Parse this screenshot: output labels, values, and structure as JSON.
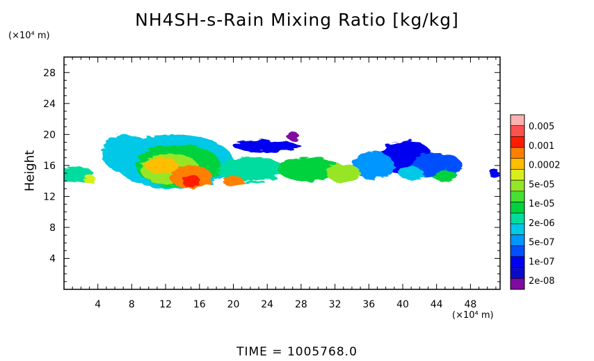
{
  "title": "NH4SH-s-Rain Mixing Ratio [kg/kg]",
  "y_unit": "(×10⁴ m)",
  "x_unit": "(×10⁴ m)",
  "ylabel": "Height",
  "time_label": "TIME  =  1005768.0",
  "chart_data": {
    "type": "heatmap",
    "title": "NH4SH-s-Rain Mixing Ratio [kg/kg]",
    "ylabel": "Height",
    "xlabel": "",
    "x_unit": "(×10⁴ m)",
    "y_unit": "(×10⁴ m)",
    "xlim": [
      0,
      51.5
    ],
    "ylim": [
      0,
      30
    ],
    "xticks": [
      4,
      8,
      12,
      16,
      20,
      24,
      28,
      32,
      36,
      40,
      44,
      48
    ],
    "yticks": [
      4,
      8,
      12,
      16,
      20,
      24,
      28
    ],
    "colorbar": {
      "labels": [
        "0.005",
        "0.001",
        "0.0002",
        "5e-05",
        "1e-05",
        "2e-06",
        "5e-07",
        "1e-07",
        "2e-08"
      ],
      "colors": [
        "#ffb0b0",
        "#ff5050",
        "#ff1e00",
        "#ff8000",
        "#ffbe00",
        "#d8ee1e",
        "#96e628",
        "#46e032",
        "#00d23c",
        "#00dca0",
        "#00c8e6",
        "#0096ff",
        "#0050ff",
        "#0000f0",
        "#0a0ac8",
        "#800aa0"
      ]
    },
    "blobs": [
      {
        "x": 1.5,
        "y": 14.8,
        "w": 4.0,
        "h": 2.2,
        "level": 9
      },
      {
        "x": 3.0,
        "y": 14.2,
        "w": 1.5,
        "h": 1.0,
        "level": 5
      },
      {
        "x": 7.5,
        "y": 17.5,
        "w": 6.0,
        "h": 5.0,
        "level": 10
      },
      {
        "x": 13.0,
        "y": 16.5,
        "w": 14.0,
        "h": 7.0,
        "level": 10
      },
      {
        "x": 13.5,
        "y": 16.0,
        "w": 10.0,
        "h": 5.5,
        "level": 8
      },
      {
        "x": 12.5,
        "y": 15.5,
        "w": 7.0,
        "h": 4.0,
        "level": 6
      },
      {
        "x": 11.5,
        "y": 16.0,
        "w": 4.0,
        "h": 2.0,
        "level": 4
      },
      {
        "x": 15.0,
        "y": 14.5,
        "w": 5.0,
        "h": 3.0,
        "level": 3
      },
      {
        "x": 15.0,
        "y": 14.0,
        "w": 2.0,
        "h": 1.8,
        "level": 2
      },
      {
        "x": 20.0,
        "y": 14.0,
        "w": 2.5,
        "h": 1.5,
        "level": 3
      },
      {
        "x": 22.0,
        "y": 15.5,
        "w": 8.0,
        "h": 3.2,
        "level": 9
      },
      {
        "x": 24.0,
        "y": 18.5,
        "w": 8.0,
        "h": 1.5,
        "level": 13
      },
      {
        "x": 29.0,
        "y": 15.5,
        "w": 7.5,
        "h": 3.2,
        "level": 8
      },
      {
        "x": 33.0,
        "y": 15.0,
        "w": 4.0,
        "h": 2.5,
        "level": 6
      },
      {
        "x": 36.5,
        "y": 16.0,
        "w": 5.0,
        "h": 3.5,
        "level": 11
      },
      {
        "x": 40.5,
        "y": 17.0,
        "w": 6.0,
        "h": 4.5,
        "level": 13
      },
      {
        "x": 44.0,
        "y": 16.0,
        "w": 6.0,
        "h": 3.2,
        "level": 12
      },
      {
        "x": 45.0,
        "y": 14.6,
        "w": 3.0,
        "h": 1.4,
        "level": 8
      },
      {
        "x": 41.0,
        "y": 15.0,
        "w": 3.0,
        "h": 1.5,
        "level": 10
      },
      {
        "x": 27.0,
        "y": 19.8,
        "w": 1.5,
        "h": 1.0,
        "level": 15
      },
      {
        "x": 50.8,
        "y": 15.0,
        "w": 1.2,
        "h": 1.2,
        "level": 13
      }
    ]
  }
}
